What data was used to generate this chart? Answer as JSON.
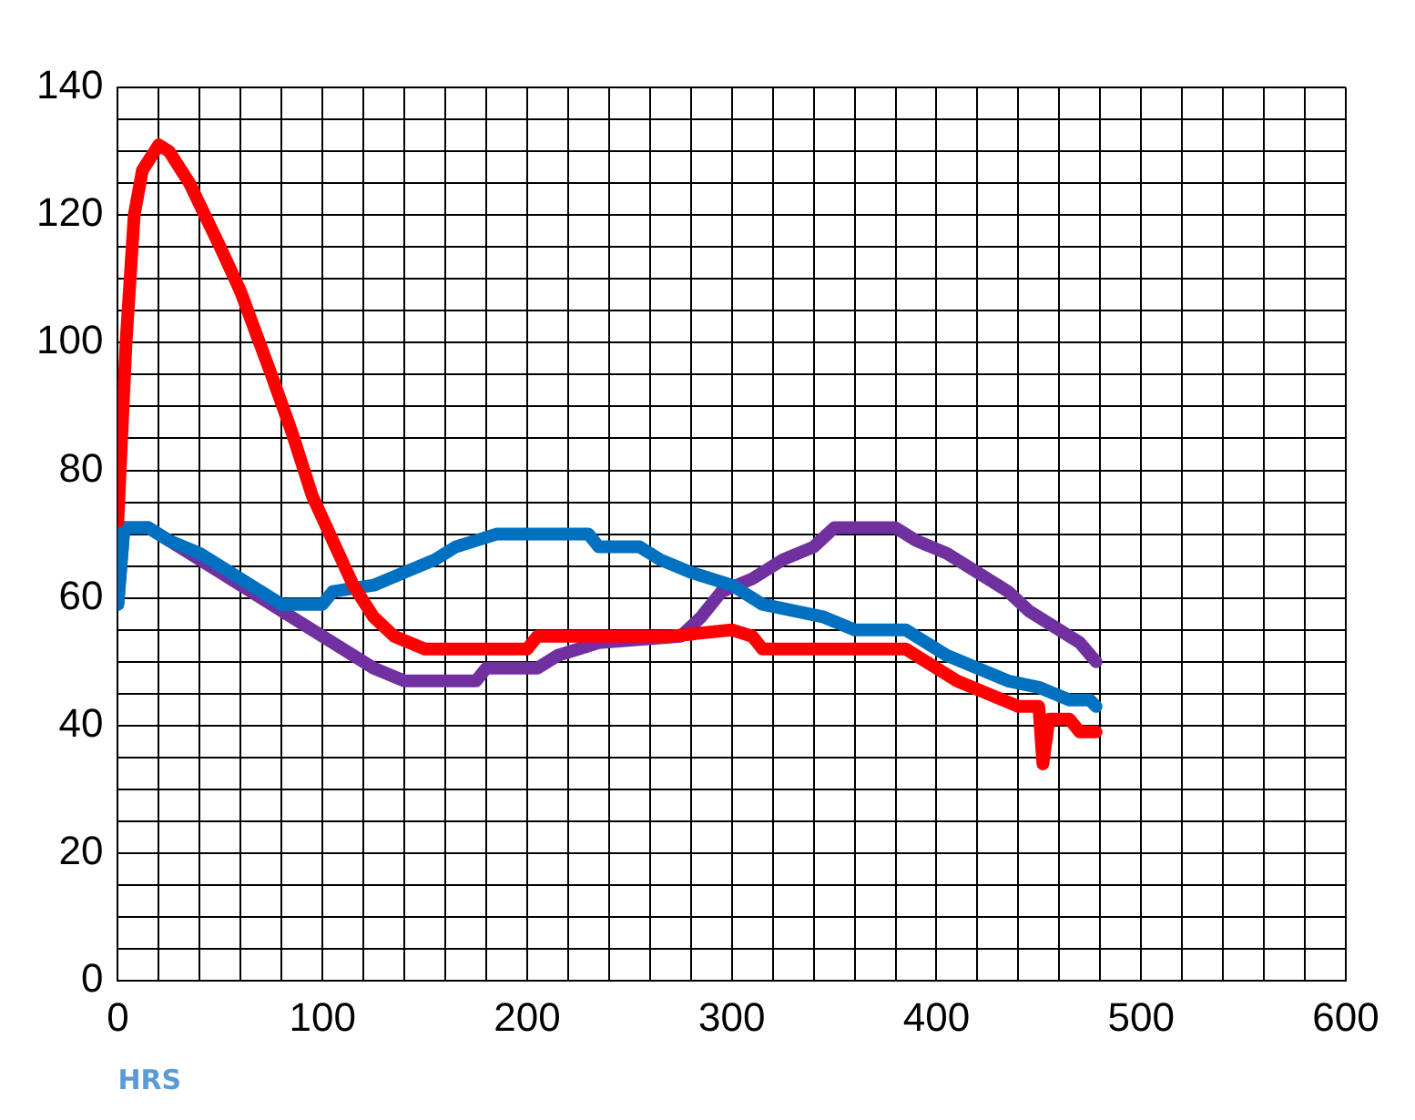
{
  "chart_data": {
    "type": "line",
    "xlabel": "HRS",
    "xlim": [
      0,
      600
    ],
    "ylim": [
      0,
      140
    ],
    "xticks": [
      0,
      {
        "value": 20,
        "label": null
      },
      {
        "value": 40,
        "label": null
      },
      {
        "value": 60,
        "label": null
      },
      {
        "value": 80,
        "label": null
      },
      100,
      {
        "value": 120,
        "label": null
      },
      {
        "value": 140,
        "label": null
      },
      {
        "value": 160,
        "label": null
      },
      {
        "value": 180,
        "label": null
      },
      200,
      {
        "value": 220,
        "label": null
      },
      {
        "value": 240,
        "label": null
      },
      {
        "value": 260,
        "label": null
      },
      {
        "value": 280,
        "label": null
      },
      300,
      {
        "value": 320,
        "label": null
      },
      {
        "value": 340,
        "label": null
      },
      {
        "value": 360,
        "label": null
      },
      {
        "value": 380,
        "label": null
      },
      400,
      {
        "value": 420,
        "label": null
      },
      {
        "value": 440,
        "label": null
      },
      {
        "value": 460,
        "label": null
      },
      {
        "value": 480,
        "label": null
      },
      500,
      {
        "value": 520,
        "label": null
      },
      {
        "value": 540,
        "label": null
      },
      {
        "value": 560,
        "label": null
      },
      {
        "value": 580,
        "label": null
      },
      600
    ],
    "yticks": [
      0,
      {
        "value": 5,
        "label": null
      },
      {
        "value": 10,
        "label": null
      },
      {
        "value": 15,
        "label": null
      },
      20,
      {
        "value": 25,
        "label": null
      },
      {
        "value": 30,
        "label": null
      },
      {
        "value": 35,
        "label": null
      },
      40,
      {
        "value": 45,
        "label": null
      },
      {
        "value": 50,
        "label": null
      },
      {
        "value": 55,
        "label": null
      },
      60,
      {
        "value": 65,
        "label": null
      },
      {
        "value": 70,
        "label": null
      },
      {
        "value": 75,
        "label": null
      },
      80,
      {
        "value": 85,
        "label": null
      },
      {
        "value": 90,
        "label": null
      },
      {
        "value": 95,
        "label": null
      },
      100,
      {
        "value": 105,
        "label": null
      },
      {
        "value": 110,
        "label": null
      },
      {
        "value": 115,
        "label": null
      },
      120,
      {
        "value": 125,
        "label": null
      },
      {
        "value": 130,
        "label": null
      },
      {
        "value": 135,
        "label": null
      },
      140
    ],
    "grid": true,
    "legend": false,
    "marker": "none",
    "line_style": "solid",
    "series": [
      {
        "color": "#ff0000",
        "x": [
          0,
          4,
          8,
          12,
          20,
          25,
          35,
          50,
          60,
          75,
          85,
          95,
          105,
          115,
          125,
          135,
          150,
          200,
          205,
          270,
          300,
          310,
          315,
          385,
          395,
          410,
          425,
          440,
          450,
          452,
          455,
          465,
          470,
          478
        ],
        "values": [
          72,
          100,
          120,
          127,
          131,
          130,
          125,
          115,
          108,
          95,
          86,
          76,
          69,
          62,
          57,
          54,
          52,
          52,
          54,
          54,
          55,
          54,
          52,
          52,
          50,
          47,
          45,
          43,
          43,
          34,
          41,
          41,
          39,
          39
        ]
      },
      {
        "color": "#0070c0",
        "x": [
          0,
          3,
          15,
          25,
          40,
          55,
          70,
          80,
          100,
          105,
          125,
          140,
          155,
          165,
          185,
          230,
          235,
          255,
          265,
          280,
          300,
          315,
          330,
          345,
          360,
          385,
          395,
          405,
          420,
          435,
          450,
          465,
          475,
          478
        ],
        "values": [
          59,
          71,
          71,
          69,
          67,
          64,
          61,
          59,
          59,
          61,
          62,
          64,
          66,
          68,
          70,
          70,
          68,
          68,
          66,
          64,
          62,
          59,
          58,
          57,
          55,
          55,
          53,
          51,
          49,
          47,
          46,
          44,
          44,
          43
        ]
      },
      {
        "color": "#7030a0",
        "x": [
          0,
          3,
          15,
          25,
          35,
          50,
          65,
          80,
          95,
          110,
          125,
          140,
          175,
          180,
          205,
          215,
          235,
          275,
          285,
          295,
          310,
          325,
          340,
          350,
          380,
          390,
          405,
          420,
          435,
          445,
          460,
          470,
          478
        ],
        "values": [
          59,
          71,
          71,
          69,
          67,
          64,
          61,
          58,
          55,
          52,
          49,
          47,
          47,
          49,
          49,
          51,
          53,
          54,
          57,
          61,
          63,
          66,
          68,
          71,
          71,
          69,
          67,
          64,
          61,
          58,
          55,
          53,
          50
        ]
      }
    ]
  }
}
